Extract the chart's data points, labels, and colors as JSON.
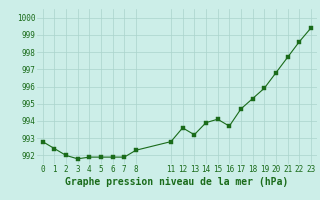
{
  "x": [
    0,
    1,
    2,
    3,
    4,
    5,
    6,
    7,
    8,
    11,
    12,
    13,
    14,
    15,
    16,
    17,
    18,
    19,
    20,
    21,
    22,
    23
  ],
  "y": [
    992.8,
    992.4,
    992.0,
    991.8,
    991.9,
    991.9,
    991.9,
    991.9,
    992.3,
    992.8,
    993.6,
    993.2,
    993.9,
    994.1,
    993.7,
    994.7,
    995.3,
    995.9,
    996.8,
    997.7,
    998.6,
    999.4
  ],
  "line_color": "#1a6b1a",
  "marker_color": "#1a6b1a",
  "bg_color": "#cceee8",
  "grid_color": "#aad4cc",
  "xlabel": "Graphe pression niveau de la mer (hPa)",
  "xlabel_color": "#1a6b1a",
  "tick_color": "#1a6b1a",
  "ylim": [
    991.5,
    1000.5
  ],
  "xlim": [
    -0.5,
    23.5
  ],
  "yticks": [
    992,
    993,
    994,
    995,
    996,
    997,
    998,
    999,
    1000
  ],
  "xticks": [
    0,
    1,
    2,
    3,
    4,
    5,
    6,
    7,
    8,
    11,
    12,
    13,
    14,
    15,
    16,
    17,
    18,
    19,
    20,
    21,
    22,
    23
  ],
  "tick_fontsize": 5.5,
  "xlabel_fontsize": 7.0
}
